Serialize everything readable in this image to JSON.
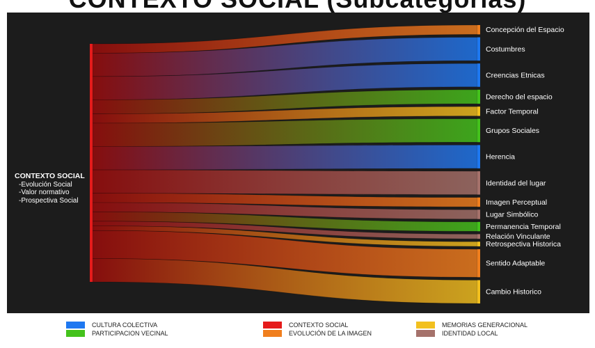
{
  "title": "CONTEXTO SOCIAL (Subcategorías)",
  "source_node": {
    "title": "CONTEXTO SOCIAL",
    "lines": [
      "-Evolución Social",
      "-Valor normativo",
      "-Prospectiva Social"
    ],
    "color": "#e51b1b"
  },
  "chart_data": {
    "type": "sankey",
    "source": "CONTEXTO SOCIAL",
    "flows": [
      {
        "target": "Concepción del Espacio",
        "value": 2,
        "group": "EVOLUCIÓN DE LA IMAGEN"
      },
      {
        "target": "Costumbres",
        "value": 5,
        "group": "CULTURA COLECTIVA"
      },
      {
        "target": "Creencias Etnicas",
        "value": 5,
        "group": "CULTURA COLECTIVA"
      },
      {
        "target": "Derecho del espacio",
        "value": 3,
        "group": "PARTICIPACION VECINAL"
      },
      {
        "target": "Factor Temporal",
        "value": 2,
        "group": "MEMORIAS GENERACIONAL"
      },
      {
        "target": "Grupos Sociales",
        "value": 5,
        "group": "PARTICIPACION VECINAL"
      },
      {
        "target": "Herencia",
        "value": 5,
        "group": "CULTURA COLECTIVA"
      },
      {
        "target": "Identidad del lugar",
        "value": 5,
        "group": "IDENTIDAD LOCAL"
      },
      {
        "target": "Imagen Perceptual",
        "value": 2,
        "group": "EVOLUCIÓN DE LA IMAGEN"
      },
      {
        "target": "Lugar Simbólico",
        "value": 2,
        "group": "IDENTIDAD LOCAL"
      },
      {
        "target": "Permanencia Temporal",
        "value": 2,
        "group": "PARTICIPACION VECINAL"
      },
      {
        "target": "Relación Vinculante",
        "value": 1,
        "group": "IDENTIDAD LOCAL"
      },
      {
        "target": "Retrospectiva Historica",
        "value": 1,
        "group": "MEMORIAS GENERACIONAL"
      },
      {
        "target": "Sentido Adaptable",
        "value": 6,
        "group": "EVOLUCIÓN DE LA IMAGEN"
      },
      {
        "target": "Cambio Historico",
        "value": 5,
        "group": "MEMORIAS GENERACIONAL"
      }
    ],
    "legend": [
      {
        "label": "CULTURA COLECTIVA",
        "color": "#1e78f0"
      },
      {
        "label": "PARTICIPACION VECINAL",
        "color": "#44c21c"
      },
      {
        "label": "CONTEXTO SOCIAL",
        "color": "#e51b1b"
      },
      {
        "label": "EVOLUCIÓN DE LA IMAGEN",
        "color": "#f07f1e"
      },
      {
        "label": "MEMORIAS GENERACIONAL",
        "color": "#f2c01f"
      },
      {
        "label": "IDENTIDAD LOCAL",
        "color": "#a5726b"
      }
    ]
  },
  "colors": {
    "background": "#1c1c1c",
    "flow_start": "#8b0d0d",
    "source_bar": "#e51b1b"
  }
}
